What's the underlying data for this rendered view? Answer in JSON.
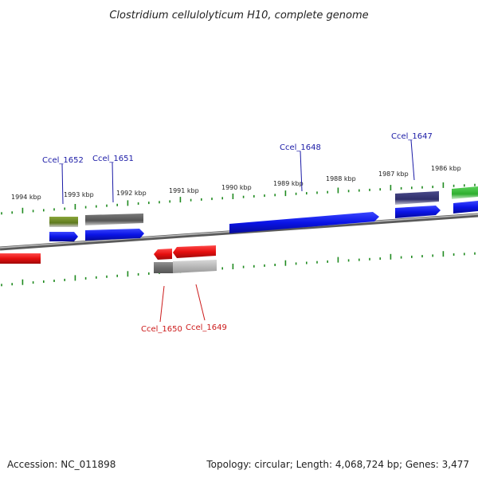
{
  "title": "Clostridium cellulolyticum H10, complete genome",
  "footer": {
    "accession": "Accession: NC_011898",
    "summary": "Topology: circular; Length: 4,068,724 bp; Genes: 3,477"
  },
  "scale_labels": [
    "1994 kbp",
    "1993 kbp",
    "1992 kbp",
    "1991 kbp",
    "1990 kbp",
    "1989 kbp",
    "1988 kbp",
    "1987 kbp",
    "1986 kbp"
  ],
  "gene_labels": {
    "ccel_1652": "Ccel_1652",
    "ccel_1651": "Ccel_1651",
    "ccel_1648": "Ccel_1648",
    "ccel_1647": "Ccel_1647",
    "ccel_1650": "Ccel_1650",
    "ccel_1649": "Ccel_1649"
  },
  "colors": {
    "forward_strand": "#0a14e6",
    "reverse_strand": "#e60f0f",
    "forward_label": "#1a1aa6",
    "reverse_label": "#cc1a1a",
    "tick": "#1f8a1f",
    "backbone": "#8a8a8a"
  }
}
